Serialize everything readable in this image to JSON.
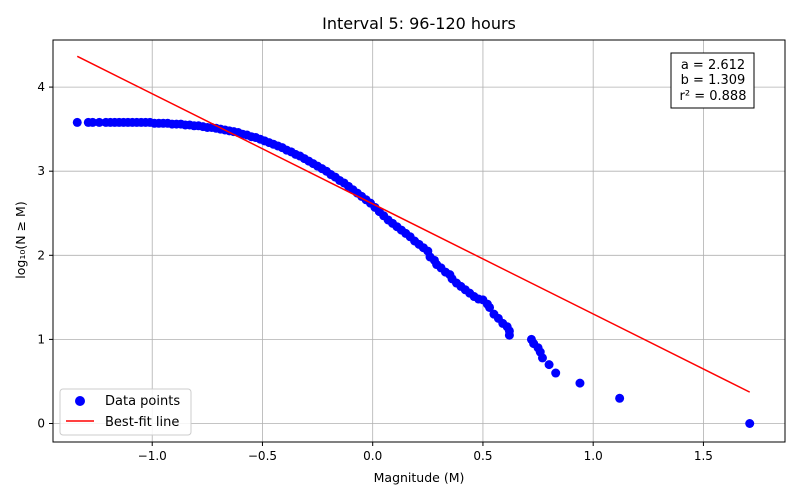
{
  "chart_data": {
    "type": "scatter",
    "title": "Interval 5: 96-120 hours",
    "xlabel": "Magnitude (M)",
    "ylabel": "log₁₀(N ≥ M)",
    "xlim": [
      -1.45,
      1.87
    ],
    "ylim": [
      -0.22,
      4.56
    ],
    "grid": true,
    "x_ticks": [
      -1.0,
      -0.5,
      0.0,
      0.5,
      1.0,
      1.5
    ],
    "x_tick_labels": [
      "−1.0",
      "−0.5",
      "0.0",
      "0.5",
      "1.0",
      "1.5"
    ],
    "y_ticks": [
      0,
      1,
      2,
      3,
      4
    ],
    "y_tick_labels": [
      "0",
      "1",
      "2",
      "3",
      "4"
    ],
    "legend_position": "lower-left",
    "annotation": {
      "position": "top-right",
      "lines": [
        "a = 2.612",
        "b = 1.309",
        "r² = 0.888"
      ]
    },
    "colors": {
      "points": "#0000ff",
      "fit_line": "#ff0000",
      "grid": "#b0b0b0"
    },
    "series": [
      {
        "name": "Data points",
        "kind": "scatter",
        "points": [
          [
            -1.34,
            3.58
          ],
          [
            -1.29,
            3.58
          ],
          [
            -1.27,
            3.58
          ],
          [
            -1.24,
            3.58
          ],
          [
            -1.21,
            3.58
          ],
          [
            -1.19,
            3.58
          ],
          [
            -1.17,
            3.58
          ],
          [
            -1.15,
            3.58
          ],
          [
            -1.13,
            3.58
          ],
          [
            -1.11,
            3.58
          ],
          [
            -1.09,
            3.58
          ],
          [
            -1.07,
            3.58
          ],
          [
            -1.05,
            3.58
          ],
          [
            -1.03,
            3.58
          ],
          [
            -1.01,
            3.58
          ],
          [
            -0.99,
            3.57
          ],
          [
            -0.97,
            3.57
          ],
          [
            -0.95,
            3.57
          ],
          [
            -0.93,
            3.57
          ],
          [
            -0.91,
            3.56
          ],
          [
            -0.89,
            3.56
          ],
          [
            -0.87,
            3.56
          ],
          [
            -0.85,
            3.55
          ],
          [
            -0.83,
            3.55
          ],
          [
            -0.81,
            3.54
          ],
          [
            -0.79,
            3.54
          ],
          [
            -0.77,
            3.53
          ],
          [
            -0.75,
            3.52
          ],
          [
            -0.73,
            3.52
          ],
          [
            -0.71,
            3.51
          ],
          [
            -0.69,
            3.5
          ],
          [
            -0.67,
            3.49
          ],
          [
            -0.65,
            3.48
          ],
          [
            -0.63,
            3.47
          ],
          [
            -0.61,
            3.46
          ],
          [
            -0.59,
            3.44
          ],
          [
            -0.57,
            3.43
          ],
          [
            -0.55,
            3.41
          ],
          [
            -0.53,
            3.4
          ],
          [
            -0.51,
            3.38
          ],
          [
            -0.49,
            3.36
          ],
          [
            -0.47,
            3.34
          ],
          [
            -0.45,
            3.32
          ],
          [
            -0.43,
            3.3
          ],
          [
            -0.41,
            3.28
          ],
          [
            -0.39,
            3.25
          ],
          [
            -0.37,
            3.23
          ],
          [
            -0.35,
            3.2
          ],
          [
            -0.33,
            3.18
          ],
          [
            -0.31,
            3.15
          ],
          [
            -0.29,
            3.12
          ],
          [
            -0.27,
            3.09
          ],
          [
            -0.25,
            3.06
          ],
          [
            -0.23,
            3.03
          ],
          [
            -0.21,
            3.0
          ],
          [
            -0.19,
            2.96
          ],
          [
            -0.17,
            2.93
          ],
          [
            -0.15,
            2.89
          ],
          [
            -0.13,
            2.86
          ],
          [
            -0.11,
            2.82
          ],
          [
            -0.09,
            2.78
          ],
          [
            -0.07,
            2.74
          ],
          [
            -0.05,
            2.7
          ],
          [
            -0.03,
            2.66
          ],
          [
            -0.01,
            2.62
          ],
          [
            0.01,
            2.57
          ],
          [
            0.03,
            2.52
          ],
          [
            0.05,
            2.47
          ],
          [
            0.07,
            2.42
          ],
          [
            0.09,
            2.38
          ],
          [
            0.11,
            2.34
          ],
          [
            0.13,
            2.3
          ],
          [
            0.15,
            2.26
          ],
          [
            0.17,
            2.22
          ],
          [
            0.19,
            2.17
          ],
          [
            0.21,
            2.13
          ],
          [
            0.23,
            2.09
          ],
          [
            0.25,
            2.05
          ],
          [
            0.26,
            1.98
          ],
          [
            0.28,
            1.94
          ],
          [
            0.29,
            1.89
          ],
          [
            0.31,
            1.85
          ],
          [
            0.33,
            1.8
          ],
          [
            0.35,
            1.77
          ],
          [
            0.36,
            1.72
          ],
          [
            0.38,
            1.67
          ],
          [
            0.4,
            1.63
          ],
          [
            0.42,
            1.59
          ],
          [
            0.44,
            1.55
          ],
          [
            0.46,
            1.51
          ],
          [
            0.48,
            1.48
          ],
          [
            0.5,
            1.47
          ],
          [
            0.52,
            1.42
          ],
          [
            0.53,
            1.38
          ],
          [
            0.55,
            1.3
          ],
          [
            0.57,
            1.25
          ],
          [
            0.59,
            1.19
          ],
          [
            0.61,
            1.15
          ],
          [
            0.62,
            1.1
          ],
          [
            0.62,
            1.05
          ],
          [
            0.72,
            1.0
          ],
          [
            0.73,
            0.95
          ],
          [
            0.75,
            0.9
          ],
          [
            0.76,
            0.85
          ],
          [
            0.77,
            0.78
          ],
          [
            0.8,
            0.7
          ],
          [
            0.83,
            0.6
          ],
          [
            0.94,
            0.48
          ],
          [
            1.12,
            0.3
          ],
          [
            1.71,
            0.0
          ]
        ]
      },
      {
        "name": "Best-fit line",
        "kind": "line",
        "points": [
          [
            -1.34,
            4.366
          ],
          [
            1.71,
            0.373
          ]
        ]
      }
    ]
  }
}
